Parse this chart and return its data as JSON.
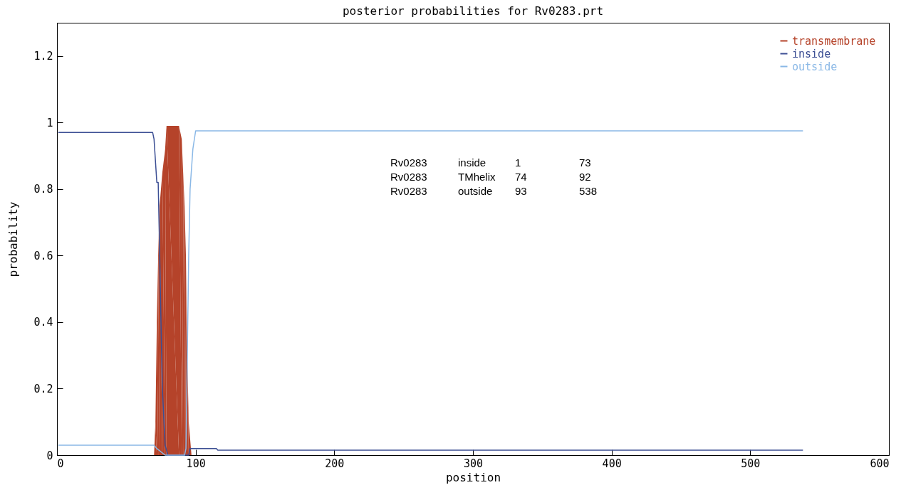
{
  "chart_data": {
    "type": "line",
    "title": "posterior probabilities for Rv0283.prt",
    "xlabel": "position",
    "ylabel": "probability",
    "xlim": [
      0,
      600
    ],
    "xticks": [
      0,
      100,
      200,
      300,
      400,
      500,
      600
    ],
    "ylim": [
      0,
      1.3
    ],
    "yticks": [
      {
        "value": 0,
        "label": "0"
      },
      {
        "value": 0.2,
        "label": "0.2"
      },
      {
        "value": 0.4,
        "label": "0.4"
      },
      {
        "value": 0.6,
        "label": "0.6"
      },
      {
        "value": 0.8,
        "label": "0.8"
      },
      {
        "value": 1,
        "label": "1"
      },
      {
        "value": 1.2,
        "label": "1.2"
      }
    ],
    "legend": "top right",
    "grid": false,
    "series": [
      {
        "name": "transmembrane",
        "type": "area",
        "color": "#b5432a",
        "x": [
          1,
          70,
          71,
          72,
          73,
          74,
          76,
          78,
          79,
          88,
          90,
          91,
          92,
          93,
          94,
          95,
          97,
          100,
          538
        ],
        "values": [
          0,
          0,
          0.1,
          0.4,
          0.6,
          0.75,
          0.85,
          0.92,
          0.99,
          0.99,
          0.95,
          0.85,
          0.75,
          0.6,
          0.3,
          0.1,
          0,
          0,
          0
        ]
      },
      {
        "name": "inside",
        "color": "#3c4f94",
        "x": [
          1,
          69,
          70,
          72,
          73,
          74,
          75,
          76,
          78,
          80,
          95,
          96,
          115,
          116,
          538
        ],
        "values": [
          0.97,
          0.97,
          0.95,
          0.82,
          0.82,
          0.62,
          0.4,
          0.2,
          0.03,
          0,
          0,
          0.02,
          0.02,
          0.015,
          0.015
        ]
      },
      {
        "name": "outside",
        "color": "#8ab8e6",
        "x": [
          1,
          70,
          72,
          78,
          92,
          93,
          94,
          95,
          96,
          98,
          100,
          538
        ],
        "values": [
          0.03,
          0.03,
          0.02,
          0,
          0,
          0.02,
          0.3,
          0.6,
          0.8,
          0.92,
          0.975,
          0.975
        ]
      }
    ],
    "annotations": [
      "Rv0283",
      "inside",
      "1",
      "73",
      "Rv0283",
      "TMhelix",
      "74",
      "92",
      "Rv0283",
      "outside",
      "93",
      "538"
    ]
  }
}
